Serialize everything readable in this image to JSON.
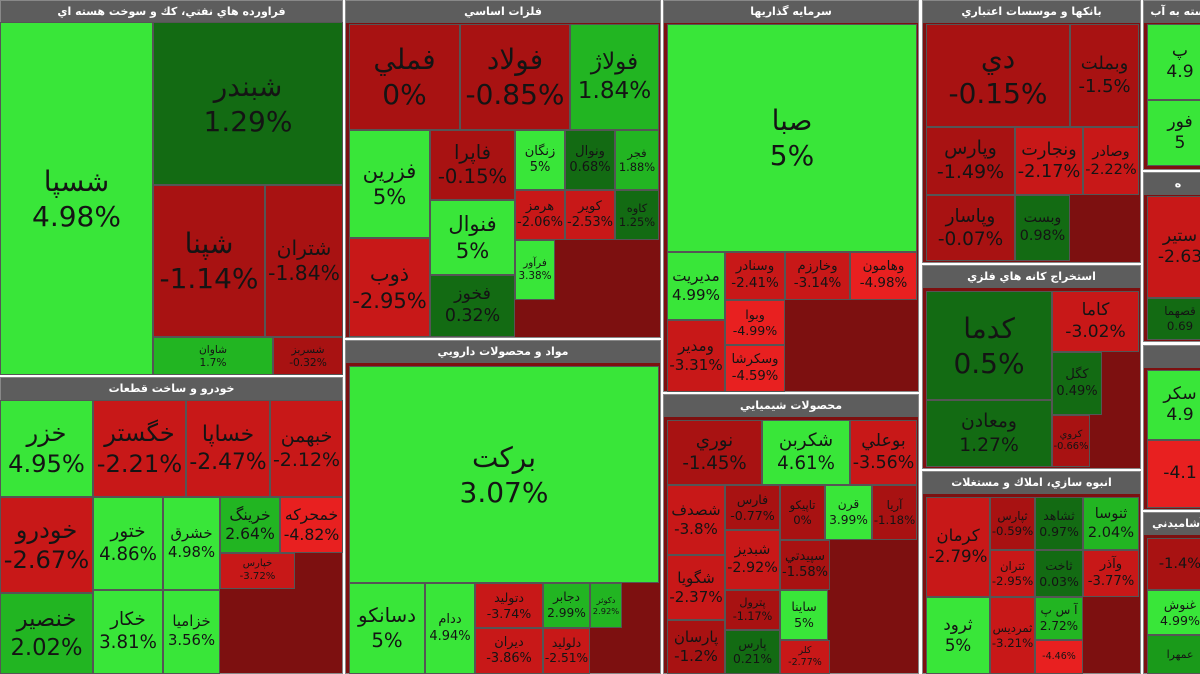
{
  "sectors": [
    {
      "title": "فراورده هاي نفتي، كك و سوخت هسته اي",
      "tiles": [
        {
          "name": "شسپا",
          "change": "4.98%"
        },
        {
          "name": "شبندر",
          "change": "1.29%"
        },
        {
          "name": "شپنا",
          "change": "-1.14%"
        },
        {
          "name": "شتران",
          "change": "-1.84%"
        },
        {
          "name": "شاوان",
          "change": "1.7%"
        },
        {
          "name": "شسربز",
          "change": "-0.32%"
        }
      ]
    },
    {
      "title": "خودرو و ساخت قطعات",
      "tiles": [
        {
          "name": "خزر",
          "change": "4.95%"
        },
        {
          "name": "خگستر",
          "change": "-2.21%"
        },
        {
          "name": "خساپا",
          "change": "-2.47%"
        },
        {
          "name": "خبهمن",
          "change": "-2.12%"
        },
        {
          "name": "خودرو",
          "change": "-2.67%"
        },
        {
          "name": "خنصير",
          "change": "2.02%"
        },
        {
          "name": "ختور",
          "change": "4.86%"
        },
        {
          "name": "خكار",
          "change": "3.81%"
        },
        {
          "name": "خشرق",
          "change": "4.98%"
        },
        {
          "name": "خزاميا",
          "change": "3.56%"
        },
        {
          "name": "خرينگ",
          "change": "2.64%"
        },
        {
          "name": "خمحركه",
          "change": "-4.82%"
        },
        {
          "name": "خپارس",
          "change": "-3.72%"
        }
      ]
    },
    {
      "title": "فلزات اساسي",
      "tiles": [
        {
          "name": "فملي",
          "change": "0%"
        },
        {
          "name": "فولاد",
          "change": "-0.85%"
        },
        {
          "name": "فولاژ",
          "change": "1.84%"
        },
        {
          "name": "فزرين",
          "change": "5%"
        },
        {
          "name": "فاپرا",
          "change": "-0.15%"
        },
        {
          "name": "زنگان",
          "change": "5%"
        },
        {
          "name": "ونوال",
          "change": "0.68%"
        },
        {
          "name": "فجر",
          "change": "1.88%"
        },
        {
          "name": "فنوال",
          "change": "5%"
        },
        {
          "name": "فخوز",
          "change": "0.32%"
        },
        {
          "name": "ذوب",
          "change": "-2.95%"
        },
        {
          "name": "هرمز",
          "change": "-2.06%"
        },
        {
          "name": "كوير",
          "change": "-2.53%"
        },
        {
          "name": "كاوه",
          "change": "1.25%"
        },
        {
          "name": "فرآور",
          "change": "3.38%"
        }
      ]
    },
    {
      "title": "مواد و محصولات دارويي",
      "tiles": [
        {
          "name": "بركت",
          "change": "3.07%"
        },
        {
          "name": "دسانكو",
          "change": "5%"
        },
        {
          "name": "ددام",
          "change": "4.94%"
        },
        {
          "name": "دتوليد",
          "change": "-3.74%"
        },
        {
          "name": "دجابر",
          "change": "2.99%"
        },
        {
          "name": "دكوثر",
          "change": "2.92%"
        },
        {
          "name": "ديران",
          "change": "-3.86%"
        },
        {
          "name": "دلوليد",
          "change": "-2.51%"
        }
      ]
    },
    {
      "title": "سرمايه گذاريها",
      "tiles": [
        {
          "name": "صبا",
          "change": "5%"
        },
        {
          "name": "مديريت",
          "change": "4.99%"
        },
        {
          "name": "وسنادر",
          "change": "-2.41%"
        },
        {
          "name": "وخارزم",
          "change": "-3.14%"
        },
        {
          "name": "وهامون",
          "change": "-4.98%"
        },
        {
          "name": "وبوا",
          "change": "-4.99%"
        },
        {
          "name": "وسكرشا",
          "change": "-4.59%"
        },
        {
          "name": "ومدير",
          "change": "-3.31%"
        }
      ]
    },
    {
      "title": "محصولات شيميايي",
      "tiles": [
        {
          "name": "نوري",
          "change": "-1.45%"
        },
        {
          "name": "شكربن",
          "change": "4.61%"
        },
        {
          "name": "بوعلي",
          "change": "-3.56%"
        },
        {
          "name": "شصدف",
          "change": "-3.8%"
        },
        {
          "name": "شگويا",
          "change": "-2.37%"
        },
        {
          "name": "پارسان",
          "change": "-1.2%"
        },
        {
          "name": "فارس",
          "change": "-0.77%"
        },
        {
          "name": "شبديز",
          "change": "-2.92%"
        },
        {
          "name": "پترول",
          "change": "-1.17%"
        },
        {
          "name": "پارس",
          "change": "0.21%"
        },
        {
          "name": "تاپيكو",
          "change": "0%"
        },
        {
          "name": "قرن",
          "change": "3.99%"
        },
        {
          "name": "آريا",
          "change": "-1.18%"
        },
        {
          "name": "سپيدتي",
          "change": "-1.58%"
        },
        {
          "name": "ساينا",
          "change": "5%"
        },
        {
          "name": "كلر",
          "change": "-2.77%"
        }
      ]
    },
    {
      "title": "بانكها و موسسات اعتباري",
      "tiles": [
        {
          "name": "دي",
          "change": "-0.15%"
        },
        {
          "name": "وبملت",
          "change": "-1.5%"
        },
        {
          "name": "وپارس",
          "change": "-1.49%"
        },
        {
          "name": "ونجارت",
          "change": "-2.17%"
        },
        {
          "name": "وصادر",
          "change": "-2.22%"
        },
        {
          "name": "وپاسار",
          "change": "-0.07%"
        },
        {
          "name": "وبست",
          "change": "0.98%"
        }
      ]
    },
    {
      "title": "استخراج كانه هاي فلزي",
      "tiles": [
        {
          "name": "كدما",
          "change": "0.5%"
        },
        {
          "name": "كاما",
          "change": "-3.02%"
        },
        {
          "name": "كگل",
          "change": "0.49%"
        },
        {
          "name": "ومعادن",
          "change": "1.27%"
        },
        {
          "name": "كروي",
          "change": "-0.66%"
        }
      ]
    },
    {
      "title": "انبوه سازي، املاك و مستغلات",
      "tiles": [
        {
          "name": "كرمان",
          "change": "-2.79%"
        },
        {
          "name": "ثرود",
          "change": "5%"
        },
        {
          "name": "ثپارس",
          "change": "-0.59%"
        },
        {
          "name": "ثشاهد",
          "change": "0.97%"
        },
        {
          "name": "ثنوسا",
          "change": "2.04%"
        },
        {
          "name": "ثتران",
          "change": "-2.95%"
        },
        {
          "name": "ثاخت",
          "change": "0.03%"
        },
        {
          "name": "وآذر",
          "change": "-3.77%"
        },
        {
          "name": "آ س پ",
          "change": "2.72%"
        },
        {
          "name": "ثمرديس",
          "change": "-3.21%"
        },
        {
          "change": "-4.46%"
        }
      ]
    },
    {
      "title": "سته به آب",
      "tiles": [
        {
          "name": "پ",
          "change": "4.9"
        },
        {
          "name": "فور",
          "change": "5"
        }
      ]
    },
    {
      "title": "ه",
      "tiles": [
        {
          "name": "ستير",
          "change": "-2.63"
        },
        {
          "name": "قصهما",
          "change": "0.69"
        }
      ]
    },
    {
      "tiles": [
        {
          "name": "سكر",
          "change": "4.9"
        },
        {
          "change": "-4.1"
        }
      ]
    },
    {
      "title": "آشاميدني",
      "tiles": [
        {
          "change": "-1.4%"
        },
        {
          "name": "غنوش",
          "change": "4.99%"
        },
        {
          "name": "عمهرا"
        }
      ]
    }
  ]
}
